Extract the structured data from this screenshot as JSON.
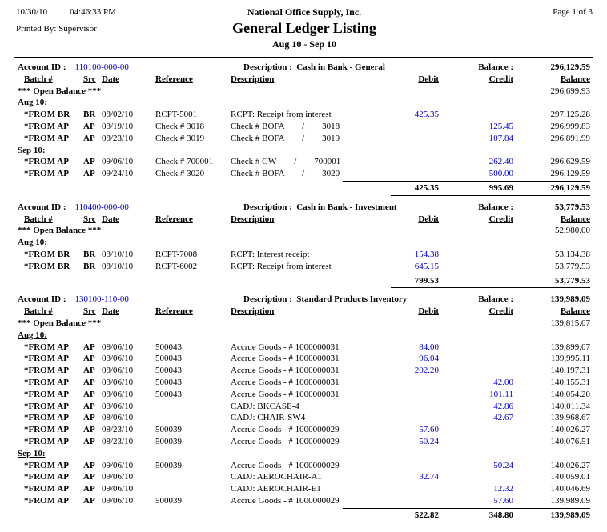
{
  "page": {
    "print_date": "10/30/10",
    "print_time": "04:46:33 PM",
    "printed_by": "Printed By: Supervisor",
    "company": "National Office Supply, Inc.",
    "title": "General Ledger Listing",
    "period": "Aug 10 - Sep 10",
    "page_label": "Page 1 of 3"
  },
  "labels": {
    "account_id": "Account ID :",
    "description": "Description :",
    "balance": "Balance :",
    "open_balance": "*** Open Balance ***",
    "columns": {
      "batch": "Batch #",
      "src": "Src",
      "date": "Date",
      "reference": "Reference",
      "description": "Description",
      "debit": "Debit",
      "credit": "Credit",
      "balance": "Balance"
    }
  },
  "colors": {
    "link_blue": "#0000cc",
    "text": "#000000"
  },
  "accounts": [
    {
      "id": "110100-000-00",
      "description": "Cash in Bank - General",
      "balance": "296,129.59",
      "open_balance": "296,699.93",
      "groups": [
        {
          "label": "Aug 10:",
          "rows": [
            {
              "batch": "*FROM BR",
              "src": "BR",
              "date": "08/02/10",
              "reference": "RCPT-5001",
              "description": "RCPT: Receipt from interest",
              "debit": "425.35",
              "credit": "",
              "balance": "297,125.28"
            },
            {
              "batch": "*FROM AP",
              "src": "AP",
              "date": "08/19/10",
              "reference": "Check # 3018",
              "description": "Check # BOFA        /        3018",
              "debit": "",
              "credit": "125.45",
              "balance": "296,999.83"
            },
            {
              "batch": "*FROM AP",
              "src": "AP",
              "date": "08/23/10",
              "reference": "Check # 3019",
              "description": "Check # BOFA        /        3019",
              "debit": "",
              "credit": "107.84",
              "balance": "296,891.99"
            }
          ]
        },
        {
          "label": "Sep 10:",
          "rows": [
            {
              "batch": "*FROM AP",
              "src": "AP",
              "date": "09/06/10",
              "reference": "Check # 700001",
              "description": "Check # GW        /        700001",
              "debit": "",
              "credit": "262.40",
              "balance": "296,629.59"
            },
            {
              "batch": "*FROM AP",
              "src": "AP",
              "date": "09/24/10",
              "reference": "Check # 3020",
              "description": "Check # BOFA        /        3020",
              "debit": "",
              "credit": "500.00",
              "balance": "296,129.59"
            }
          ]
        }
      ],
      "totals": {
        "debit": "425.35",
        "credit": "995.69",
        "balance": "296,129.59"
      }
    },
    {
      "id": "110400-000-00",
      "description": "Cash in Bank - Investment",
      "balance": "53,779.53",
      "open_balance": "52,980.00",
      "groups": [
        {
          "label": "Aug 10:",
          "rows": [
            {
              "batch": "*FROM BR",
              "src": "BR",
              "date": "08/10/10",
              "reference": "RCPT-7008",
              "description": "RCPT: Interest receipt",
              "debit": "154.38",
              "credit": "",
              "balance": "53,134.38"
            },
            {
              "batch": "*FROM BR",
              "src": "BR",
              "date": "08/10/10",
              "reference": "RCPT-6002",
              "description": "RCPT: Receipt from interest",
              "debit": "645.15",
              "credit": "",
              "balance": "53,779.53"
            }
          ]
        }
      ],
      "totals": {
        "debit": "799.53",
        "credit": "",
        "balance": "53,779.53"
      }
    },
    {
      "id": "130100-110-00",
      "description": "Standard Products Inventory",
      "balance": "139,989.09",
      "open_balance": "139,815.07",
      "groups": [
        {
          "label": "Aug 10:",
          "rows": [
            {
              "batch": "*FROM AP",
              "src": "AP",
              "date": "08/06/10",
              "reference": "500043",
              "description": "Accrue Goods - # 1000000031",
              "debit": "84.00",
              "credit": "",
              "balance": "139,899.07"
            },
            {
              "batch": "*FROM AP",
              "src": "AP",
              "date": "08/06/10",
              "reference": "500043",
              "description": "Accrue Goods - # 1000000031",
              "debit": "96.04",
              "credit": "",
              "balance": "139,995.11"
            },
            {
              "batch": "*FROM AP",
              "src": "AP",
              "date": "08/06/10",
              "reference": "500043",
              "description": "Accrue Goods - # 1000000031",
              "debit": "202.20",
              "credit": "",
              "balance": "140,197.31"
            },
            {
              "batch": "*FROM AP",
              "src": "AP",
              "date": "08/06/10",
              "reference": "500043",
              "description": "Accrue Goods - # 1000000031",
              "debit": "",
              "credit": "42.00",
              "balance": "140,155.31"
            },
            {
              "batch": "*FROM AP",
              "src": "AP",
              "date": "08/06/10",
              "reference": "500043",
              "description": "Accrue Goods - # 1000000031",
              "debit": "",
              "credit": "101.11",
              "balance": "140,054.20"
            },
            {
              "batch": "*FROM AP",
              "src": "AP",
              "date": "08/06/10",
              "reference": "",
              "description": "CADJ: BKCASE-4",
              "debit": "",
              "credit": "42.86",
              "balance": "140,011.34"
            },
            {
              "batch": "*FROM AP",
              "src": "AP",
              "date": "08/06/10",
              "reference": "",
              "description": "CADJ: CHAIR-SW4",
              "debit": "",
              "credit": "42.67",
              "balance": "139,968.67"
            },
            {
              "batch": "*FROM AP",
              "src": "AP",
              "date": "08/23/10",
              "reference": "500039",
              "description": "Accrue Goods - # 1000000029",
              "debit": "57.60",
              "credit": "",
              "balance": "140,026.27"
            },
            {
              "batch": "*FROM AP",
              "src": "AP",
              "date": "08/23/10",
              "reference": "500039",
              "description": "Accrue Goods - # 1000000029",
              "debit": "50.24",
              "credit": "",
              "balance": "140,076.51"
            }
          ]
        },
        {
          "label": "Sep 10:",
          "rows": [
            {
              "batch": "*FROM AP",
              "src": "AP",
              "date": "09/06/10",
              "reference": "500039",
              "description": "Accrue Goods - # 1000000029",
              "debit": "",
              "credit": "50.24",
              "balance": "140,026.27"
            },
            {
              "batch": "*FROM AP",
              "src": "AP",
              "date": "09/06/10",
              "reference": "",
              "description": "CADJ: AEROCHAIR-A1",
              "debit": "32.74",
              "credit": "",
              "balance": "140,059.01"
            },
            {
              "batch": "*FROM AP",
              "src": "AP",
              "date": "09/06/10",
              "reference": "",
              "description": "CADJ: AEROCHAIR-E1",
              "debit": "",
              "credit": "12.32",
              "balance": "140,046.69"
            },
            {
              "batch": "*FROM AP",
              "src": "AP",
              "date": "09/06/10",
              "reference": "500039",
              "description": "Accrue Goods - # 1000000029",
              "debit": "",
              "credit": "57.60",
              "balance": "139,989.09"
            }
          ]
        }
      ],
      "totals": {
        "debit": "522.82",
        "credit": "348.80",
        "balance": "139,989.09"
      }
    }
  ]
}
